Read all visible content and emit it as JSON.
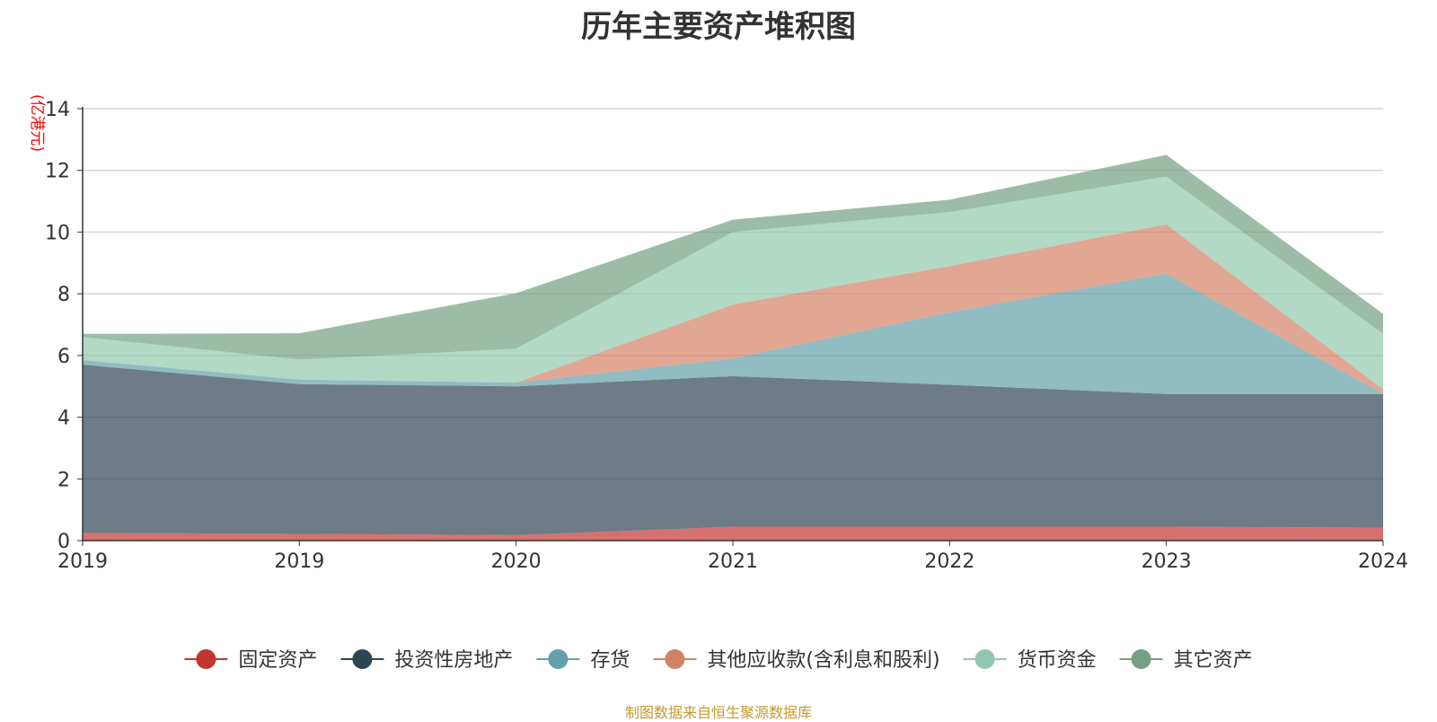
{
  "chart_data": {
    "type": "area",
    "stacked": true,
    "title": "历年主要资产堆积图",
    "unit_label": "(亿港元)",
    "x": [
      "2019",
      "2019",
      "2020",
      "2021",
      "2022",
      "2023",
      "2024"
    ],
    "ylim": [
      0,
      14
    ],
    "y_ticks": [
      "0",
      "2",
      "4",
      "6",
      "8",
      "10",
      "12",
      "14"
    ],
    "grid": true,
    "legend_position": "bottom",
    "series": [
      {
        "name": "固定资产",
        "color": "#c23531",
        "values": [
          0.25,
          0.22,
          0.18,
          0.45,
          0.45,
          0.45,
          0.42
        ]
      },
      {
        "name": "投资性房地产",
        "color": "#2f4554",
        "values": [
          5.45,
          4.85,
          4.82,
          4.88,
          4.6,
          4.3,
          4.33
        ]
      },
      {
        "name": "存货",
        "color": "#61a0a8",
        "values": [
          0.15,
          0.15,
          0.12,
          0.57,
          2.35,
          3.9,
          0.0
        ]
      },
      {
        "name": "其他应收款(含利息和股利)",
        "color": "#d48265",
        "values": [
          0.0,
          0.0,
          0.0,
          1.75,
          1.5,
          1.6,
          0.15
        ]
      },
      {
        "name": "货币资金",
        "color": "#91c7ae",
        "values": [
          0.75,
          0.65,
          1.1,
          2.35,
          1.75,
          1.55,
          1.8
        ]
      },
      {
        "name": "其它资产",
        "color": "#749f83",
        "values": [
          0.1,
          0.85,
          1.8,
          0.4,
          0.4,
          0.7,
          0.65
        ]
      }
    ]
  },
  "source_note": "制图数据来自恒生聚源数据库",
  "colors": {
    "title": "#333333",
    "unit_label": "#ff0000",
    "source_note": "#c49a2c",
    "grid": "#cccccc",
    "axis": "#333333"
  }
}
